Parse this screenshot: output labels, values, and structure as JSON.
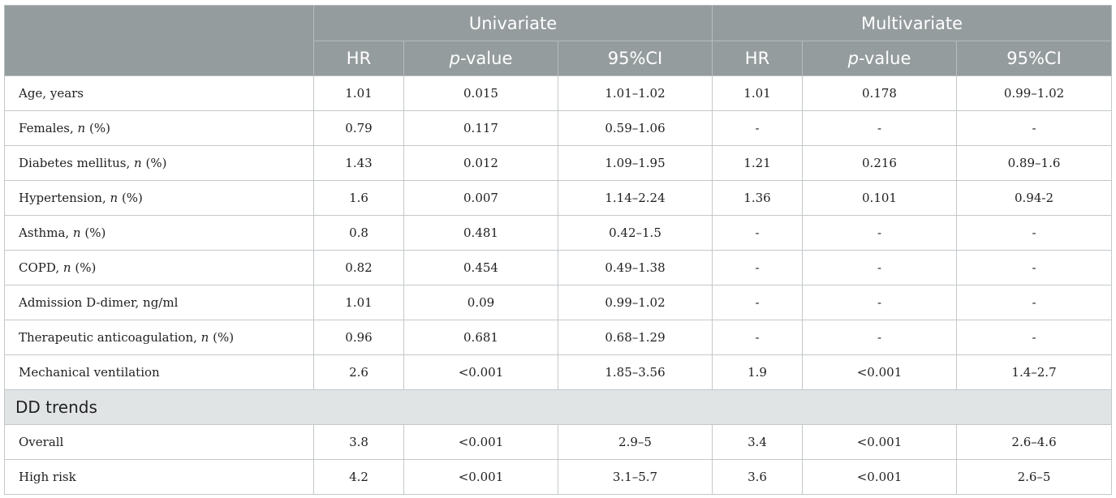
{
  "header": {
    "groups": [
      "Univariate",
      "Multivariate"
    ],
    "columns": [
      {
        "italic": "",
        "text": "HR"
      },
      {
        "italic": "p",
        "text": "-value"
      },
      {
        "italic": "",
        "text": "95%CI"
      },
      {
        "italic": "",
        "text": "HR"
      },
      {
        "italic": "p",
        "text": "-value"
      },
      {
        "italic": "",
        "text": "95%CI"
      }
    ]
  },
  "rows": [
    {
      "label": "Age, years",
      "label_italic": "",
      "label_suffix": "",
      "values": [
        "1.01",
        "0.015",
        "1.01–1.02",
        "1.01",
        "0.178",
        "0.99–1.02"
      ]
    },
    {
      "label": "Females, ",
      "label_italic": "n",
      "label_suffix": " (%)",
      "values": [
        "0.79",
        "0.117",
        "0.59–1.06",
        "-",
        "-",
        "-"
      ]
    },
    {
      "label": "Diabetes mellitus, ",
      "label_italic": "n",
      "label_suffix": " (%)",
      "values": [
        "1.43",
        "0.012",
        "1.09–1.95",
        "1.21",
        "0.216",
        "0.89–1.6"
      ]
    },
    {
      "label": "Hypertension, ",
      "label_italic": "n",
      "label_suffix": " (%)",
      "values": [
        "1.6",
        "0.007",
        "1.14–2.24",
        "1.36",
        "0.101",
        "0.94-2"
      ]
    },
    {
      "label": "Asthma, ",
      "label_italic": "n",
      "label_suffix": " (%)",
      "values": [
        "0.8",
        "0.481",
        "0.42–1.5",
        "-",
        "-",
        "-"
      ]
    },
    {
      "label": "COPD, ",
      "label_italic": "n",
      "label_suffix": " (%)",
      "values": [
        "0.82",
        "0.454",
        "0.49–1.38",
        "-",
        "-",
        "-"
      ]
    },
    {
      "label": "Admission D-dimer, ng/ml",
      "label_italic": "",
      "label_suffix": "",
      "values": [
        "1.01",
        "0.09",
        "0.99–1.02",
        "-",
        "-",
        "-"
      ]
    },
    {
      "label": "Therapeutic anticoagulation, ",
      "label_italic": "n",
      "label_suffix": " (%)",
      "values": [
        "0.96",
        "0.681",
        "0.68–1.29",
        "-",
        "-",
        "-"
      ]
    },
    {
      "label": "Mechanical ventilation",
      "label_italic": "",
      "label_suffix": "",
      "values": [
        "2.6",
        "<0.001",
        "1.85–3.56",
        "1.9",
        "<0.001",
        "1.4–2.7"
      ]
    }
  ],
  "section": {
    "title": "DD trends",
    "rows": [
      {
        "label": "Overall",
        "label_italic": "",
        "label_suffix": "",
        "values": [
          "3.8",
          "<0.001",
          "2.9–5",
          "3.4",
          "<0.001",
          "2.6–4.6"
        ]
      },
      {
        "label": "High risk",
        "label_italic": "",
        "label_suffix": "",
        "values": [
          "4.2",
          "<0.001",
          "3.1–5.7",
          "3.6",
          "<0.001",
          "2.6–5"
        ]
      }
    ]
  }
}
